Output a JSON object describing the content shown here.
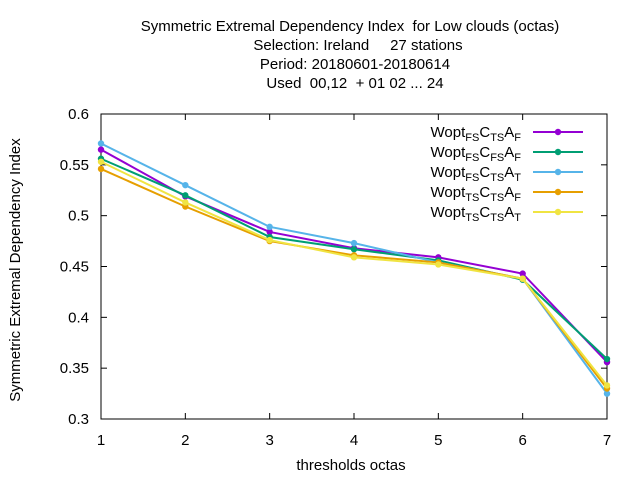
{
  "chart_data": {
    "type": "line",
    "title_lines": [
      "Symmetric Extremal Dependency Index  for Low clouds (octas)",
      "Selection: Ireland     27 stations",
      "Period: 20180601-20180614",
      "Used  00,12  + 01 02 ... 24"
    ],
    "xlabel": "thresholds octas",
    "ylabel": "Symmetric Extremal Dependency Index",
    "x": [
      1,
      2,
      3,
      4,
      5,
      6,
      7
    ],
    "xlim": [
      1,
      7
    ],
    "ylim": [
      0.3,
      0.6
    ],
    "xticks": [
      "1",
      "2",
      "3",
      "4",
      "5",
      "6",
      "7"
    ],
    "yticks": [
      "0.3",
      "0.35",
      "0.4",
      "0.45",
      "0.5",
      "0.55",
      "0.6"
    ],
    "legend_position": "top-right",
    "grid": false,
    "series": [
      {
        "name": "Wopt",
        "sub1": "FS",
        "mid1": "C",
        "sub2": "TS",
        "mid2": "A",
        "sub3": "F",
        "color": "#9400d3",
        "values": [
          0.565,
          0.519,
          0.484,
          0.468,
          0.459,
          0.443,
          0.356
        ]
      },
      {
        "name": "Wopt",
        "sub1": "FS",
        "mid1": "C",
        "sub2": "FS",
        "mid2": "A",
        "sub3": "F",
        "color": "#009e73",
        "values": [
          0.556,
          0.52,
          0.479,
          0.467,
          0.456,
          0.437,
          0.359
        ]
      },
      {
        "name": "Wopt",
        "sub1": "FS",
        "mid1": "C",
        "sub2": "TS",
        "mid2": "A",
        "sub3": "T",
        "color": "#56b4e9",
        "values": [
          0.571,
          0.53,
          0.489,
          0.473,
          0.454,
          0.438,
          0.325
        ]
      },
      {
        "name": "Wopt",
        "sub1": "TS",
        "mid1": "C",
        "sub2": "TS",
        "mid2": "A",
        "sub3": "F",
        "color": "#e69f00",
        "values": [
          0.546,
          0.509,
          0.475,
          0.461,
          0.454,
          0.438,
          0.33
        ]
      },
      {
        "name": "Wopt",
        "sub1": "TS",
        "mid1": "C",
        "sub2": "TS",
        "mid2": "A",
        "sub3": "T",
        "color": "#f0e442",
        "values": [
          0.553,
          0.513,
          0.476,
          0.459,
          0.452,
          0.438,
          0.333
        ]
      }
    ]
  }
}
